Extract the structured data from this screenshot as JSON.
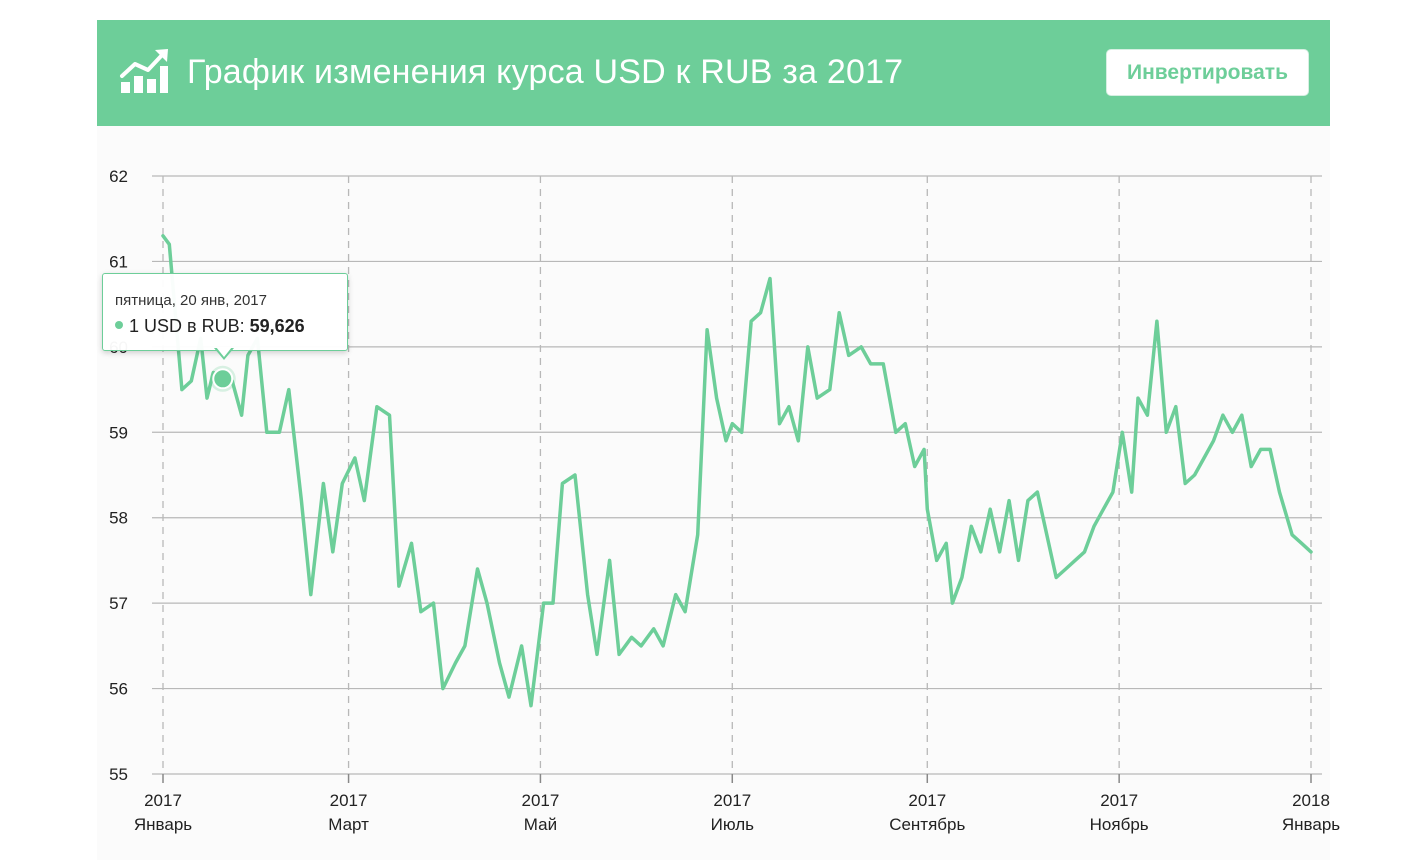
{
  "header": {
    "title": "График изменения курса USD к RUB за 2017",
    "invert_label": "Инвертировать",
    "icon": "growth-chart-icon"
  },
  "colors": {
    "accent": "#6dce99",
    "grid": "#b8b8b8",
    "axis_text": "#222222"
  },
  "tooltip": {
    "date": "пятница, 20 янв, 2017",
    "series_label": "1 USD в RUB: ",
    "value": "59,626"
  },
  "chart_data": {
    "type": "line",
    "title": "График изменения курса USD к RUB за 2017",
    "xlabel": "",
    "ylabel": "",
    "ylim": [
      55,
      62
    ],
    "y_ticks": [
      "55",
      "56",
      "57",
      "58",
      "59",
      "60",
      "61",
      "62"
    ],
    "x_ticks": [
      {
        "date": "2017-01-01",
        "year": "2017",
        "month": "Январь"
      },
      {
        "date": "2017-03-01",
        "year": "2017",
        "month": "Март"
      },
      {
        "date": "2017-05-01",
        "year": "2017",
        "month": "Май"
      },
      {
        "date": "2017-07-01",
        "year": "2017",
        "month": "Июль"
      },
      {
        "date": "2017-09-01",
        "year": "2017",
        "month": "Сентябрь"
      },
      {
        "date": "2017-11-01",
        "year": "2017",
        "month": "Ноябрь"
      },
      {
        "date": "2018-01-01",
        "year": "2018",
        "month": "Январь"
      }
    ],
    "grid": true,
    "legend": "none",
    "highlight": {
      "date": "2017-01-20",
      "value": 59.626
    },
    "series": [
      {
        "points": [
          [
            "2017-01-01",
            61.3
          ],
          [
            "2017-01-03",
            61.2
          ],
          [
            "2017-01-07",
            59.5
          ],
          [
            "2017-01-10",
            59.6
          ],
          [
            "2017-01-13",
            60.1
          ],
          [
            "2017-01-15",
            59.4
          ],
          [
            "2017-01-17",
            59.7
          ],
          [
            "2017-01-20",
            59.63
          ],
          [
            "2017-01-23",
            59.6
          ],
          [
            "2017-01-26",
            59.2
          ],
          [
            "2017-01-28",
            59.9
          ],
          [
            "2017-01-31",
            60.1
          ],
          [
            "2017-02-03",
            59.0
          ],
          [
            "2017-02-07",
            59.0
          ],
          [
            "2017-02-10",
            59.5
          ],
          [
            "2017-02-14",
            58.2
          ],
          [
            "2017-02-17",
            57.1
          ],
          [
            "2017-02-21",
            58.4
          ],
          [
            "2017-02-24",
            57.6
          ],
          [
            "2017-02-27",
            58.4
          ],
          [
            "2017-03-03",
            58.7
          ],
          [
            "2017-03-06",
            58.2
          ],
          [
            "2017-03-10",
            59.3
          ],
          [
            "2017-03-14",
            59.2
          ],
          [
            "2017-03-17",
            57.2
          ],
          [
            "2017-03-21",
            57.7
          ],
          [
            "2017-03-24",
            56.9
          ],
          [
            "2017-03-28",
            57.0
          ],
          [
            "2017-03-31",
            56.0
          ],
          [
            "2017-04-04",
            56.3
          ],
          [
            "2017-04-07",
            56.5
          ],
          [
            "2017-04-11",
            57.4
          ],
          [
            "2017-04-14",
            57.0
          ],
          [
            "2017-04-18",
            56.3
          ],
          [
            "2017-04-21",
            55.9
          ],
          [
            "2017-04-25",
            56.5
          ],
          [
            "2017-04-28",
            55.8
          ],
          [
            "2017-05-02",
            57.0
          ],
          [
            "2017-05-05",
            57.0
          ],
          [
            "2017-05-08",
            58.4
          ],
          [
            "2017-05-12",
            58.5
          ],
          [
            "2017-05-16",
            57.1
          ],
          [
            "2017-05-19",
            56.4
          ],
          [
            "2017-05-23",
            57.5
          ],
          [
            "2017-05-26",
            56.4
          ],
          [
            "2017-05-30",
            56.6
          ],
          [
            "2017-06-02",
            56.5
          ],
          [
            "2017-06-06",
            56.7
          ],
          [
            "2017-06-09",
            56.5
          ],
          [
            "2017-06-13",
            57.1
          ],
          [
            "2017-06-16",
            56.9
          ],
          [
            "2017-06-20",
            57.8
          ],
          [
            "2017-06-23",
            60.2
          ],
          [
            "2017-06-26",
            59.4
          ],
          [
            "2017-06-29",
            58.9
          ],
          [
            "2017-07-01",
            59.1
          ],
          [
            "2017-07-04",
            59.0
          ],
          [
            "2017-07-07",
            60.3
          ],
          [
            "2017-07-10",
            60.4
          ],
          [
            "2017-07-13",
            60.8
          ],
          [
            "2017-07-16",
            59.1
          ],
          [
            "2017-07-19",
            59.3
          ],
          [
            "2017-07-22",
            58.9
          ],
          [
            "2017-07-25",
            60.0
          ],
          [
            "2017-07-28",
            59.4
          ],
          [
            "2017-08-01",
            59.5
          ],
          [
            "2017-08-04",
            60.4
          ],
          [
            "2017-08-07",
            59.9
          ],
          [
            "2017-08-11",
            60.0
          ],
          [
            "2017-08-14",
            59.8
          ],
          [
            "2017-08-18",
            59.8
          ],
          [
            "2017-08-22",
            59.0
          ],
          [
            "2017-08-25",
            59.1
          ],
          [
            "2017-08-28",
            58.6
          ],
          [
            "2017-08-31",
            58.8
          ],
          [
            "2017-09-01",
            58.1
          ],
          [
            "2017-09-04",
            57.5
          ],
          [
            "2017-09-07",
            57.7
          ],
          [
            "2017-09-09",
            57.0
          ],
          [
            "2017-09-12",
            57.3
          ],
          [
            "2017-09-15",
            57.9
          ],
          [
            "2017-09-18",
            57.6
          ],
          [
            "2017-09-21",
            58.1
          ],
          [
            "2017-09-24",
            57.6
          ],
          [
            "2017-09-27",
            58.2
          ],
          [
            "2017-09-30",
            57.5
          ],
          [
            "2017-10-03",
            58.2
          ],
          [
            "2017-10-06",
            58.3
          ],
          [
            "2017-10-09",
            57.8
          ],
          [
            "2017-10-12",
            57.3
          ],
          [
            "2017-10-15",
            57.4
          ],
          [
            "2017-10-18",
            57.5
          ],
          [
            "2017-10-21",
            57.6
          ],
          [
            "2017-10-24",
            57.9
          ],
          [
            "2017-10-27",
            58.1
          ],
          [
            "2017-10-30",
            58.3
          ],
          [
            "2017-11-02",
            59.0
          ],
          [
            "2017-11-05",
            58.3
          ],
          [
            "2017-11-07",
            59.4
          ],
          [
            "2017-11-10",
            59.2
          ],
          [
            "2017-11-13",
            60.3
          ],
          [
            "2017-11-16",
            59.0
          ],
          [
            "2017-11-19",
            59.3
          ],
          [
            "2017-11-22",
            58.4
          ],
          [
            "2017-11-25",
            58.5
          ],
          [
            "2017-11-28",
            58.7
          ],
          [
            "2017-12-01",
            58.9
          ],
          [
            "2017-12-04",
            59.2
          ],
          [
            "2017-12-07",
            59.0
          ],
          [
            "2017-12-10",
            59.2
          ],
          [
            "2017-12-13",
            58.6
          ],
          [
            "2017-12-16",
            58.8
          ],
          [
            "2017-12-19",
            58.8
          ],
          [
            "2017-12-22",
            58.3
          ],
          [
            "2017-12-26",
            57.8
          ],
          [
            "2017-12-29",
            57.7
          ],
          [
            "2018-01-01",
            57.6
          ]
        ]
      }
    ]
  }
}
